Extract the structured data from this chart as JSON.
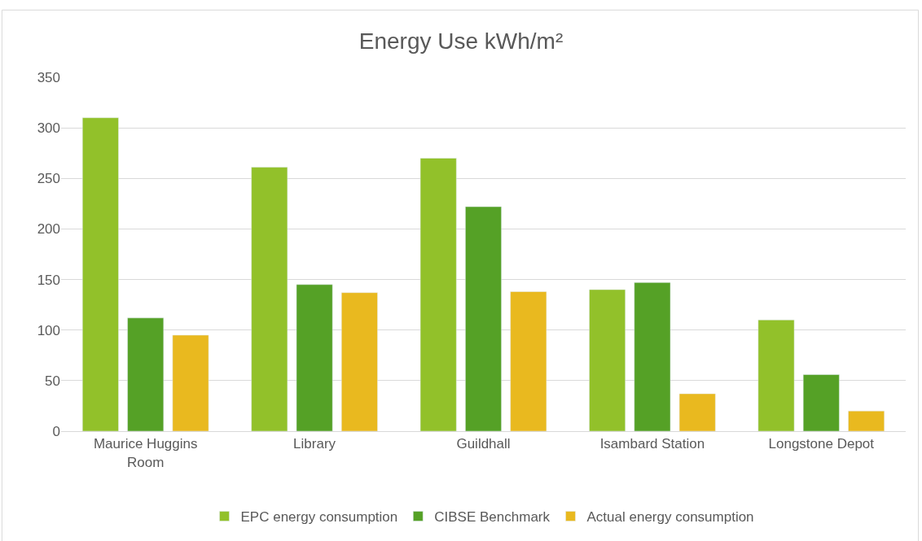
{
  "chart_data": {
    "type": "bar",
    "title": "Energy Use kWh/m²",
    "categories": [
      "Maurice Huggins Room",
      "Library",
      "Guildhall",
      "Isambard Station",
      "Longstone Depot"
    ],
    "series": [
      {
        "name": "EPC energy consumption",
        "color": "#92c12a",
        "values": [
          310,
          261,
          270,
          140,
          110
        ]
      },
      {
        "name": "CIBSE Benchmark",
        "color": "#55a126",
        "values": [
          112,
          145,
          222,
          147,
          56
        ]
      },
      {
        "name": "Actual energy consumption",
        "color": "#e9b91f",
        "values": [
          95,
          137,
          138,
          37,
          20
        ]
      }
    ],
    "ylim": [
      0,
      350
    ],
    "yticks": [
      0,
      50,
      100,
      150,
      200,
      250,
      300,
      350
    ],
    "grid": "y",
    "legend": "bottom"
  }
}
